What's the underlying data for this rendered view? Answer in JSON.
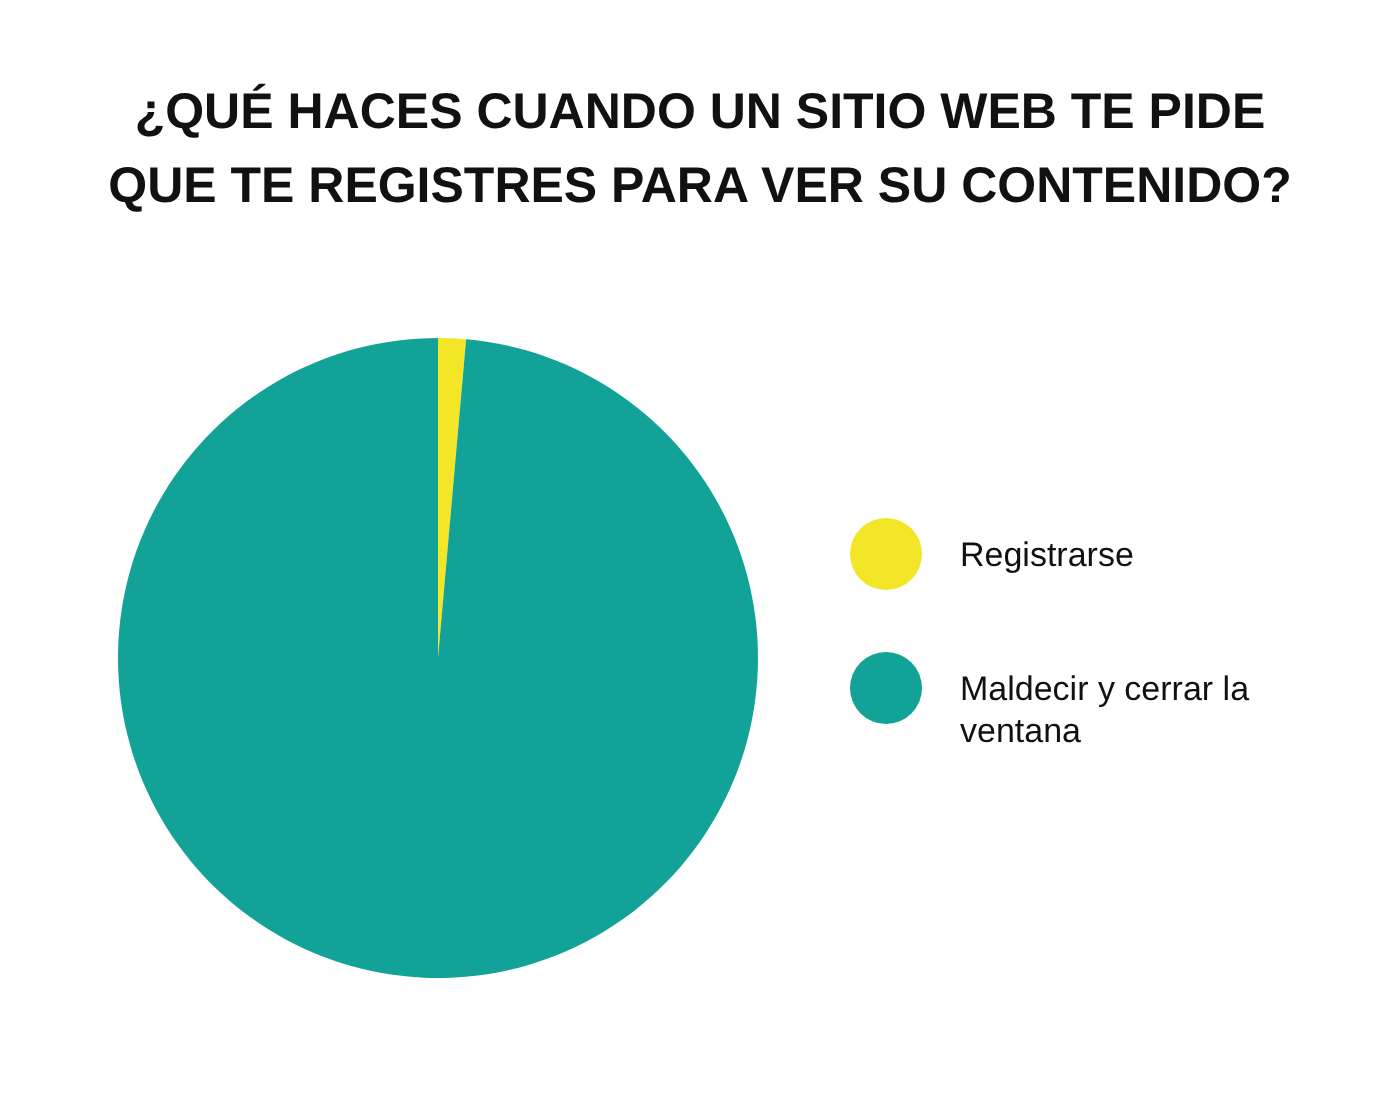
{
  "chart_data": {
    "type": "pie",
    "title": "¿QUÉ HACES CUANDO UN SITIO WEB TE PIDE QUE TE REGISTRES PARA VER SU CONTENIDO?",
    "categories": [
      "Registrarse",
      "Maldecir y cerrar la ventana"
    ],
    "values": [
      1.4,
      98.6
    ],
    "colors": [
      "#f3e626",
      "#13a297"
    ],
    "legend": "right"
  }
}
